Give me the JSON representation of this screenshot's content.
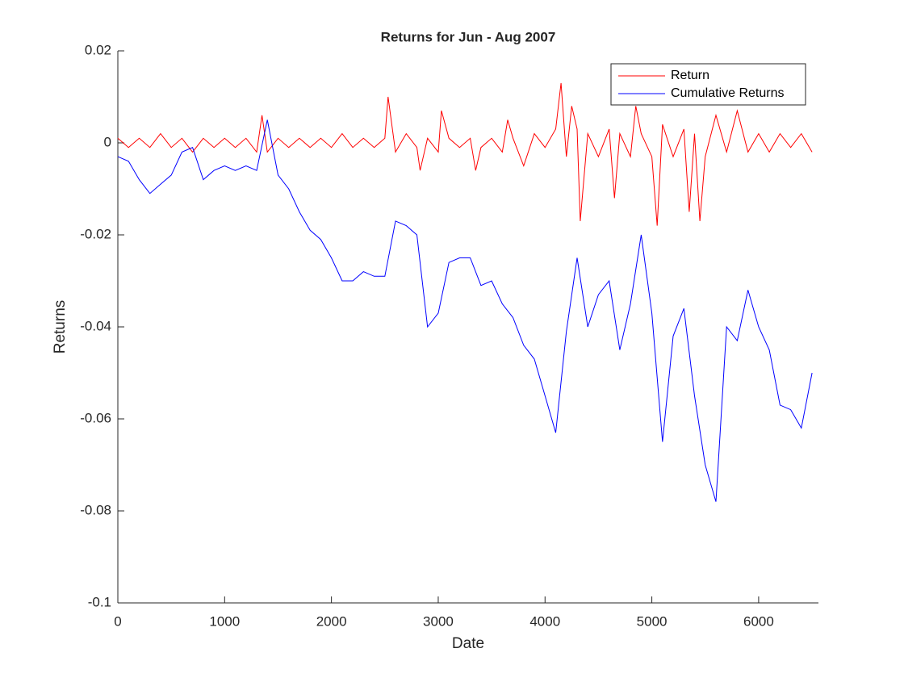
{
  "chart_data": {
    "type": "line",
    "title": "Returns for Jun - Aug 2007",
    "xlabel": "Date",
    "ylabel": "Returns",
    "xlim": [
      0,
      6560
    ],
    "xticks": [
      0,
      1000,
      2000,
      3000,
      4000,
      5000,
      6000
    ],
    "ylim": [
      -0.1,
      0.02
    ],
    "yticks": [
      -0.1,
      -0.08,
      -0.06,
      -0.04,
      -0.02,
      0,
      0.02
    ],
    "grid": false,
    "legend": "northeast",
    "series": [
      {
        "name": "Return",
        "color": "#ff0000",
        "x": [
          0,
          100,
          200,
          300,
          400,
          500,
          600,
          700,
          800,
          900,
          1000,
          1100,
          1200,
          1300,
          1350,
          1400,
          1500,
          1600,
          1700,
          1800,
          1900,
          2000,
          2100,
          2200,
          2300,
          2400,
          2500,
          2530,
          2600,
          2700,
          2800,
          2830,
          2900,
          3000,
          3030,
          3100,
          3200,
          3300,
          3350,
          3400,
          3500,
          3600,
          3650,
          3700,
          3800,
          3900,
          4000,
          4100,
          4150,
          4200,
          4250,
          4300,
          4330,
          4400,
          4500,
          4600,
          4650,
          4700,
          4800,
          4850,
          4900,
          5000,
          5050,
          5100,
          5200,
          5300,
          5350,
          5400,
          5450,
          5500,
          5600,
          5700,
          5800,
          5900,
          6000,
          6100,
          6200,
          6300,
          6400,
          6500
        ],
        "values": [
          0.001,
          -0.001,
          0.001,
          -0.001,
          0.002,
          -0.001,
          0.001,
          -0.002,
          0.001,
          -0.001,
          0.001,
          -0.001,
          0.001,
          -0.002,
          0.006,
          -0.002,
          0.001,
          -0.001,
          0.001,
          -0.001,
          0.001,
          -0.001,
          0.002,
          -0.001,
          0.001,
          -0.001,
          0.001,
          0.01,
          -0.002,
          0.002,
          -0.001,
          -0.006,
          0.001,
          -0.002,
          0.007,
          0.001,
          -0.001,
          0.001,
          -0.006,
          -0.001,
          0.001,
          -0.002,
          0.005,
          0.001,
          -0.005,
          0.002,
          -0.001,
          0.003,
          0.013,
          -0.003,
          0.008,
          0.003,
          -0.017,
          0.002,
          -0.003,
          0.003,
          -0.012,
          0.002,
          -0.003,
          0.008,
          0.002,
          -0.003,
          -0.018,
          0.004,
          -0.003,
          0.003,
          -0.015,
          0.002,
          -0.017,
          -0.003,
          0.006,
          -0.002,
          0.007,
          -0.002,
          0.002,
          -0.002,
          0.002,
          -0.001,
          0.002,
          -0.002
        ]
      },
      {
        "name": "Cumulative Returns",
        "color": "#0000ff",
        "x": [
          0,
          100,
          200,
          300,
          400,
          500,
          600,
          700,
          800,
          900,
          1000,
          1100,
          1200,
          1300,
          1400,
          1500,
          1600,
          1700,
          1800,
          1900,
          2000,
          2100,
          2200,
          2300,
          2400,
          2500,
          2600,
          2700,
          2800,
          2900,
          3000,
          3100,
          3200,
          3300,
          3400,
          3500,
          3600,
          3700,
          3800,
          3900,
          4000,
          4100,
          4200,
          4300,
          4400,
          4500,
          4600,
          4700,
          4800,
          4900,
          5000,
          5100,
          5200,
          5300,
          5400,
          5500,
          5600,
          5700,
          5800,
          5900,
          6000,
          6100,
          6200,
          6300,
          6400,
          6500
        ],
        "values": [
          -0.003,
          -0.004,
          -0.008,
          -0.011,
          -0.009,
          -0.007,
          -0.002,
          -0.001,
          -0.008,
          -0.006,
          -0.005,
          -0.006,
          -0.005,
          -0.006,
          0.005,
          -0.007,
          -0.01,
          -0.015,
          -0.019,
          -0.021,
          -0.025,
          -0.03,
          -0.03,
          -0.028,
          -0.029,
          -0.029,
          -0.017,
          -0.018,
          -0.02,
          -0.04,
          -0.037,
          -0.026,
          -0.025,
          -0.025,
          -0.031,
          -0.03,
          -0.035,
          -0.038,
          -0.044,
          -0.047,
          -0.055,
          -0.063,
          -0.041,
          -0.025,
          -0.04,
          -0.033,
          -0.03,
          -0.045,
          -0.035,
          -0.02,
          -0.037,
          -0.065,
          -0.042,
          -0.036,
          -0.055,
          -0.07,
          -0.078,
          -0.04,
          -0.043,
          -0.032,
          -0.04,
          -0.045,
          -0.057,
          -0.058,
          -0.062,
          -0.05
        ]
      }
    ]
  }
}
